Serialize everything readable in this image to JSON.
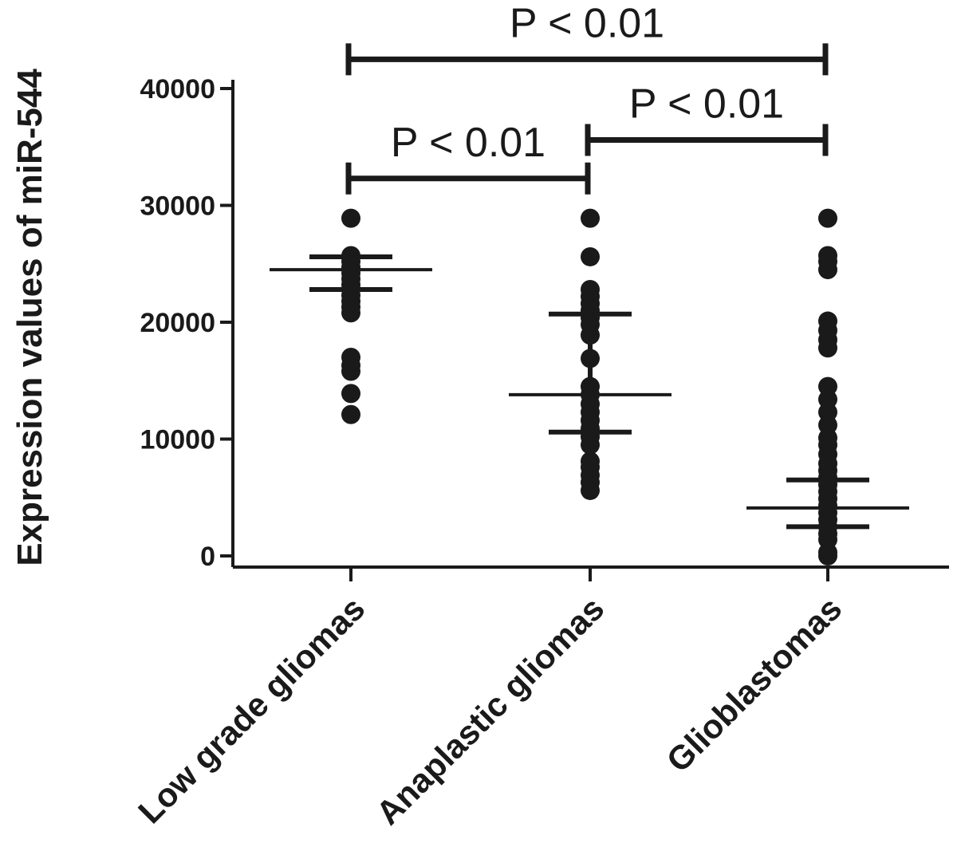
{
  "chart_data": {
    "type": "scatter",
    "subtype": "dot-plot",
    "ylabel": "Expression values of miR-544",
    "ylim": [
      0,
      40000
    ],
    "yticks": [
      0,
      10000,
      20000,
      30000,
      40000
    ],
    "ytick_labels": [
      "0",
      "10000",
      "20000",
      "30000",
      "40000"
    ],
    "categories": [
      "Low grade gliomas",
      "Anaplastic gliomas",
      "Glioblastomas"
    ],
    "series": [
      {
        "category": "Low grade gliomas",
        "values": [
          28900,
          25700,
          25200,
          24700,
          24200,
          23700,
          23200,
          22800,
          22300,
          21800,
          21300,
          20800,
          17000,
          16300,
          15800,
          13900,
          12100
        ],
        "mean": 24500,
        "sem_upper": 25600,
        "sem_lower": 22800
      },
      {
        "category": "Anaplastic gliomas",
        "values": [
          28900,
          25600,
          22800,
          22200,
          21600,
          21000,
          20400,
          19800,
          18900,
          16900,
          14500,
          13800,
          13000,
          12300,
          11600,
          10900,
          10200,
          9500,
          8100,
          7600,
          6900,
          6300,
          5600
        ],
        "mean": 13800,
        "sem_upper": 20700,
        "sem_lower": 10600
      },
      {
        "category": "Glioblastomas",
        "values": [
          28900,
          25700,
          25200,
          24500,
          20100,
          19300,
          18500,
          17800,
          14500,
          13400,
          12300,
          11200,
          10100,
          9500,
          8700,
          7900,
          7300,
          6700,
          6100,
          5500,
          4900,
          4300,
          3700,
          3100,
          2500,
          1900,
          1400,
          300,
          0
        ],
        "mean": 4100,
        "sem_upper": 6500,
        "sem_lower": 2500
      }
    ],
    "annotations": [
      {
        "from": "Low grade gliomas",
        "to": "Anaplastic gliomas",
        "text": "P < 0.01",
        "y": 32300
      },
      {
        "from": "Anaplastic gliomas",
        "to": "Glioblastomas",
        "text": "P < 0.01",
        "y": 35600
      },
      {
        "from": "Low grade gliomas",
        "to": "Glioblastomas",
        "text": "P < 0.01",
        "y": 42500
      }
    ],
    "grid": false,
    "legend": "none",
    "marker_color": "#1a1a1a"
  }
}
